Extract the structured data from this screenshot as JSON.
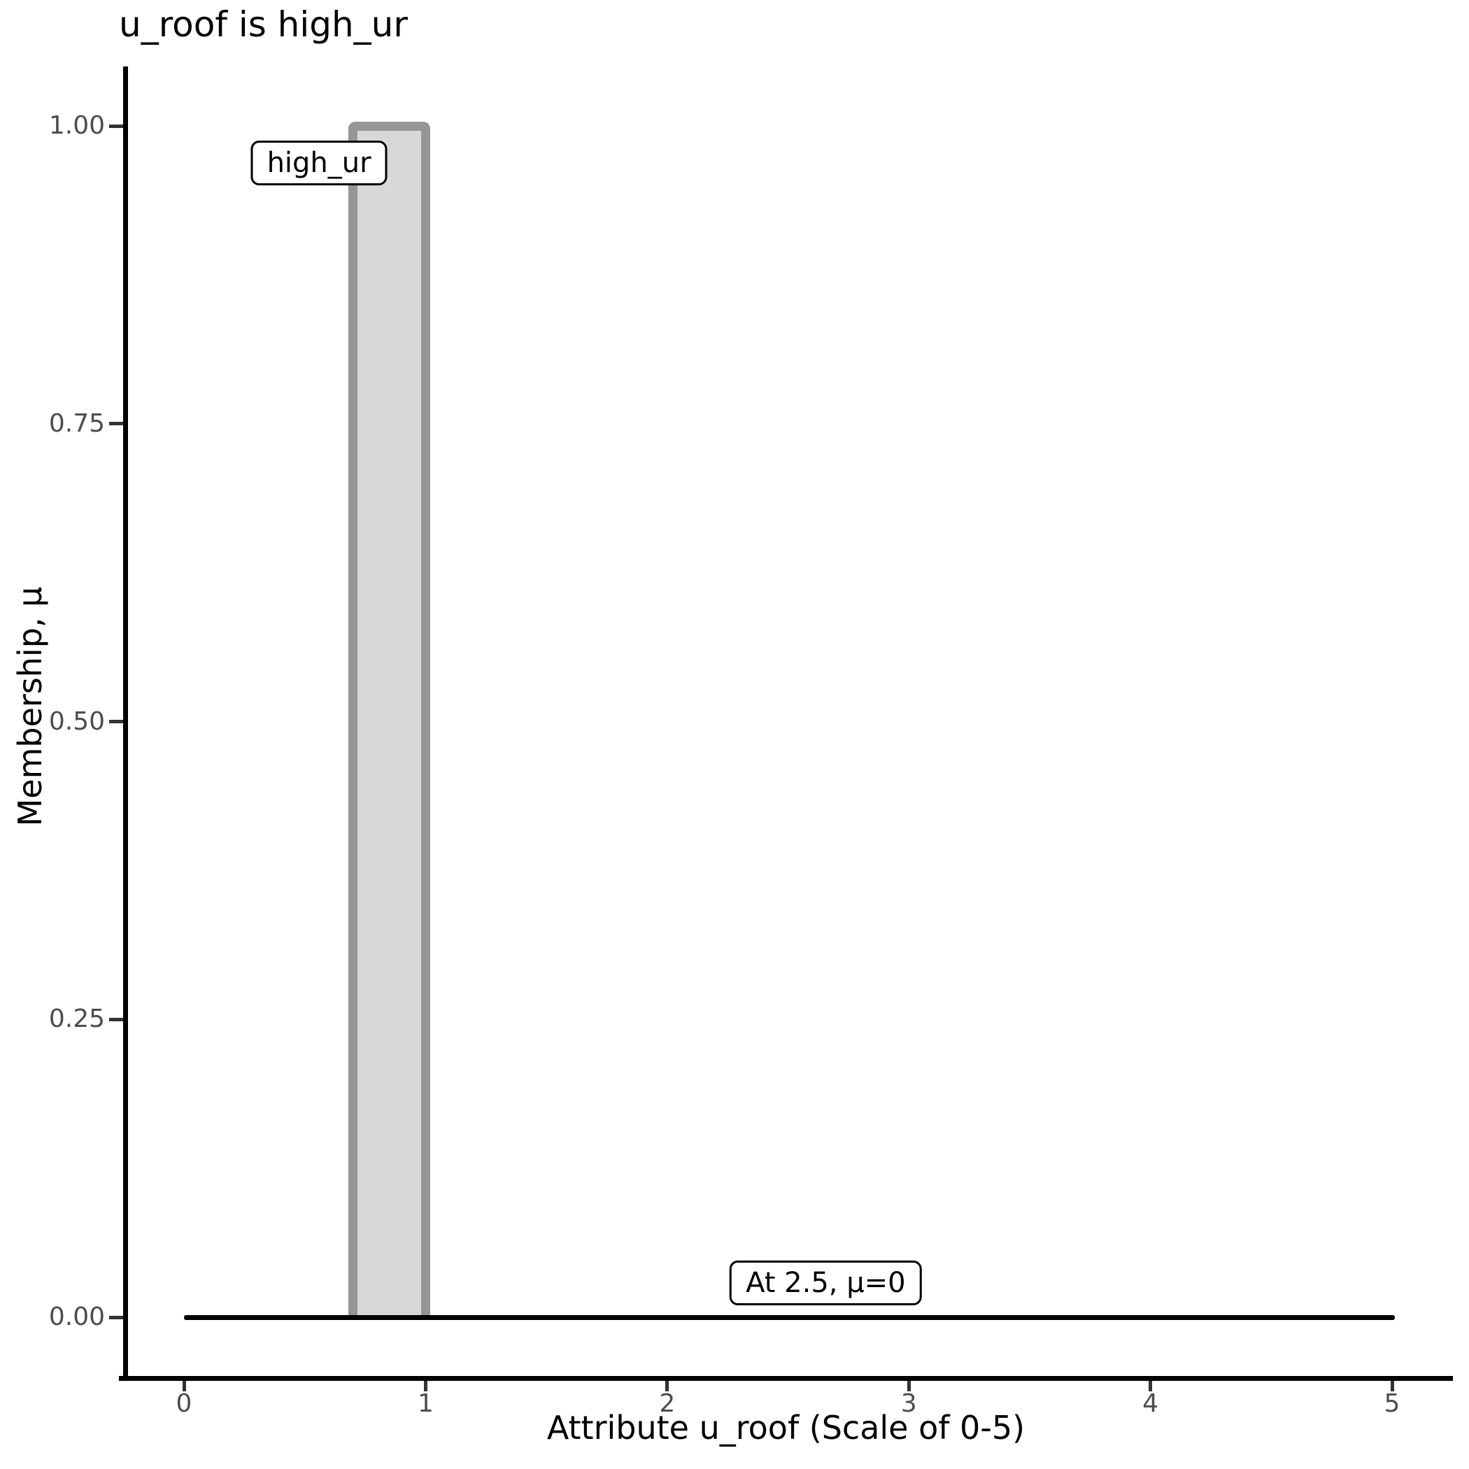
{
  "chart_data": {
    "type": "area",
    "title": "u_roof is high_ur",
    "xlabel": "Attribute u_roof (Scale of 0-5)",
    "ylabel": "Membership, μ",
    "xlim": [
      0,
      5
    ],
    "ylim": [
      0,
      1
    ],
    "grid": false,
    "legend": "none",
    "x_ticks": [
      "0",
      "1",
      "2",
      "3",
      "4",
      "5"
    ],
    "x_tick_values": [
      0,
      1,
      2,
      3,
      4,
      5
    ],
    "y_ticks": [
      "0.00",
      "0.25",
      "0.50",
      "0.75",
      "1.00"
    ],
    "y_tick_values": [
      0,
      0.25,
      0.5,
      0.75,
      1.0
    ],
    "fuzzy_set": {
      "name": "high_ur",
      "shape": "rectangle",
      "x_start": 0.7,
      "x_end": 1.0,
      "membership_height": 1.0
    },
    "evaluated_line": {
      "description": "membership result line",
      "mu": 0,
      "x_start": 0,
      "x_end": 5
    },
    "annotations": [
      {
        "text": "high_ur",
        "x": 0.559,
        "y": 0.969
      },
      {
        "text": "At 2.5, μ=0",
        "x": 2.656,
        "y": 0.029
      }
    ],
    "colors": {
      "bar_fill": "#D8D8D8",
      "bar_stroke": "#969696",
      "line": "#000000",
      "axis": "#000000",
      "tick": "#333333",
      "tick_label": "#4D4D4D",
      "text": "#000000",
      "background": "#FFFFFF"
    }
  }
}
